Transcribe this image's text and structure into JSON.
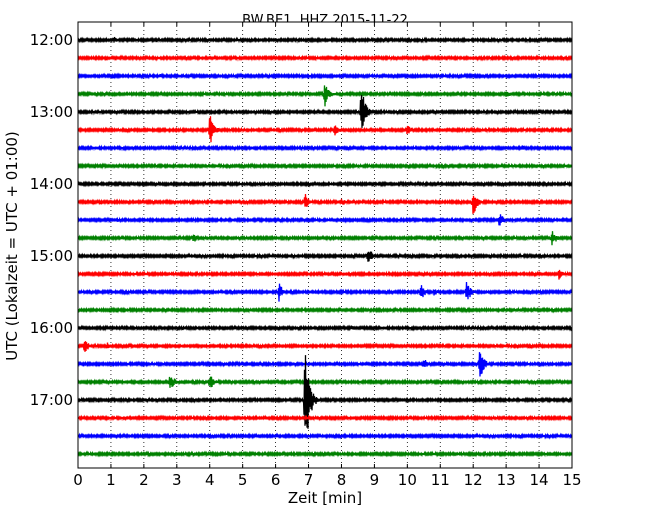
{
  "chart_data": {
    "type": "line",
    "title": "BW.BE1..HHZ 2015-11-22",
    "xlabel": "Zeit  [min]",
    "ylabel": "UTC (Lokalzeit = UTC + 01:00)",
    "xlim": [
      0,
      15
    ],
    "x_ticks": [
      "0",
      "1",
      "2",
      "3",
      "4",
      "5",
      "6",
      "7",
      "8",
      "9",
      "10",
      "11",
      "12",
      "13",
      "14",
      "15"
    ],
    "y_ticks": [
      "12:00",
      "13:00",
      "14:00",
      "15:00",
      "16:00",
      "17:00"
    ],
    "x_grid": true,
    "trace_interval_min": 15,
    "trace_colors": [
      "#000000",
      "#ff0000",
      "#0000ff",
      "#008000"
    ],
    "series": [
      {
        "start": "12:00",
        "events": [
          {
            "t": 1.1,
            "a": 4
          },
          {
            "t": 2.4,
            "a": 3
          },
          {
            "t": 12.5,
            "a": 2
          }
        ]
      },
      {
        "start": "12:15",
        "events": []
      },
      {
        "start": "12:30",
        "events": [
          {
            "t": 2.5,
            "a": 2
          },
          {
            "t": 8.9,
            "a": 2
          }
        ]
      },
      {
        "start": "12:45",
        "events": [
          {
            "t": 7.5,
            "a": 14
          },
          {
            "t": 13.0,
            "a": 6
          }
        ]
      },
      {
        "start": "13:00",
        "events": [
          {
            "t": 8.6,
            "a": 28
          }
        ]
      },
      {
        "start": "13:15",
        "events": [
          {
            "t": 4.0,
            "a": 18
          },
          {
            "t": 7.8,
            "a": 7
          },
          {
            "t": 10.0,
            "a": 6
          }
        ]
      },
      {
        "start": "13:30",
        "events": [
          {
            "t": 13.5,
            "a": 3
          }
        ]
      },
      {
        "start": "13:45",
        "events": [
          {
            "t": 10.8,
            "a": 2
          }
        ]
      },
      {
        "start": "14:00",
        "events": [
          {
            "t": 13.0,
            "a": 2
          }
        ]
      },
      {
        "start": "14:15",
        "events": [
          {
            "t": 6.9,
            "a": 9
          },
          {
            "t": 8.0,
            "a": 5
          },
          {
            "t": 12.0,
            "a": 15
          }
        ]
      },
      {
        "start": "14:30",
        "events": [
          {
            "t": 1.2,
            "a": 2
          },
          {
            "t": 12.8,
            "a": 8
          }
        ]
      },
      {
        "start": "14:45",
        "events": [
          {
            "t": 3.5,
            "a": 6
          },
          {
            "t": 14.4,
            "a": 9
          }
        ]
      },
      {
        "start": "15:00",
        "events": [
          {
            "t": 8.8,
            "a": 11
          },
          {
            "t": 13.5,
            "a": 2
          }
        ]
      },
      {
        "start": "15:15",
        "events": [
          {
            "t": 14.6,
            "a": 6
          }
        ]
      },
      {
        "start": "15:30",
        "events": [
          {
            "t": 6.1,
            "a": 10
          },
          {
            "t": 10.4,
            "a": 10
          },
          {
            "t": 10.8,
            "a": 5
          },
          {
            "t": 11.8,
            "a": 12
          }
        ]
      },
      {
        "start": "15:45",
        "events": [
          {
            "t": 9.5,
            "a": 2
          }
        ]
      },
      {
        "start": "16:00",
        "events": [
          {
            "t": 3.2,
            "a": 3
          },
          {
            "t": 8.3,
            "a": 3
          },
          {
            "t": 15.0,
            "a": 3
          }
        ]
      },
      {
        "start": "16:15",
        "events": [
          {
            "t": 0.2,
            "a": 8
          },
          {
            "t": 0.9,
            "a": 4
          }
        ]
      },
      {
        "start": "16:30",
        "events": [
          {
            "t": 10.5,
            "a": 6
          },
          {
            "t": 12.2,
            "a": 18
          }
        ]
      },
      {
        "start": "16:45",
        "events": [
          {
            "t": 2.8,
            "a": 10
          },
          {
            "t": 4.0,
            "a": 9
          }
        ]
      },
      {
        "start": "17:00",
        "events": [
          {
            "t": 6.9,
            "a": 60
          }
        ]
      },
      {
        "start": "17:15",
        "events": []
      },
      {
        "start": "17:30",
        "events": []
      },
      {
        "start": "17:45",
        "events": []
      }
    ]
  }
}
